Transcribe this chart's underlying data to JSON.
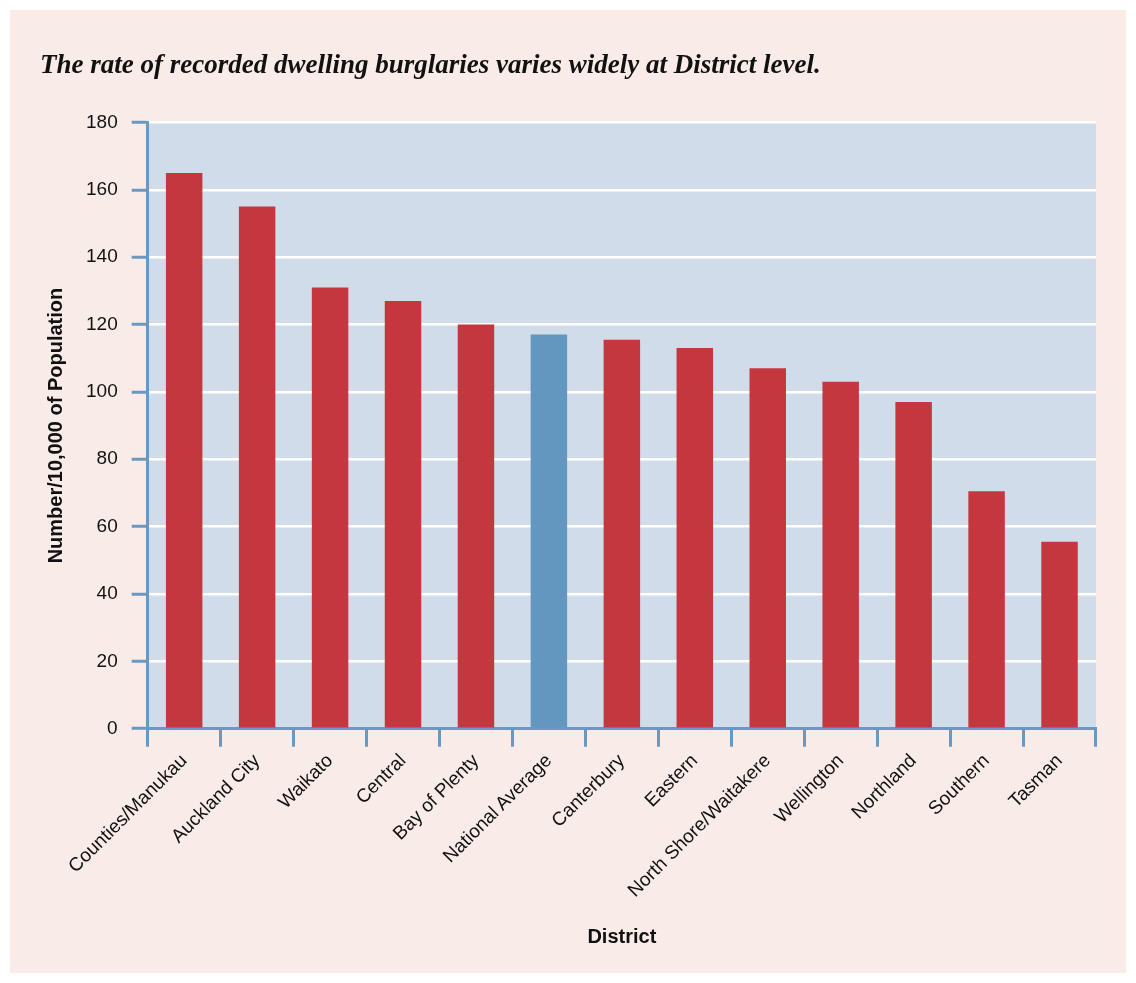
{
  "chart_data": {
    "type": "bar",
    "title": "The rate of recorded dwelling burglaries varies widely at District level.",
    "xlabel": "District",
    "ylabel": "Number/10,000 of Population",
    "categories": [
      "Counties/Manukau",
      "Auckland City",
      "Waikato",
      "Central",
      "Bay of Plenty",
      "National Average",
      "Canterbury",
      "Eastern",
      "North Shore/Waitakere",
      "Wellington",
      "Northland",
      "Southern",
      "Tasman"
    ],
    "values": [
      165,
      155,
      131,
      127,
      120,
      117,
      115.5,
      113,
      107,
      103,
      97,
      70.5,
      55.5
    ],
    "colors": [
      "#c4373f",
      "#c4373f",
      "#c4373f",
      "#c4373f",
      "#c4373f",
      "#6497c0",
      "#c4373f",
      "#c4373f",
      "#c4373f",
      "#c4373f",
      "#c4373f",
      "#c4373f",
      "#c4373f"
    ],
    "ylim": [
      0,
      180
    ],
    "yticks": [
      0,
      20,
      40,
      60,
      80,
      100,
      120,
      140,
      160,
      180
    ],
    "grid": "y",
    "legend": false
  }
}
